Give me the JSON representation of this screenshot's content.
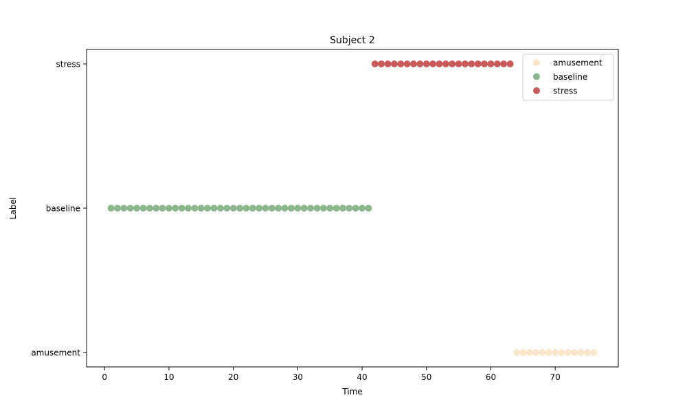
{
  "chart_data": {
    "type": "scatter",
    "title": "Subject 2",
    "xlabel": "Time",
    "ylabel": "Label",
    "xlim": [
      -2.8,
      79.8
    ],
    "x_ticks": [
      0,
      10,
      20,
      30,
      40,
      50,
      60,
      70
    ],
    "x_tick_labels": [
      "0",
      "10",
      "20",
      "30",
      "40",
      "50",
      "60",
      "70"
    ],
    "categories": [
      "amusement",
      "baseline",
      "stress"
    ],
    "grid": false,
    "legend_position": "top-right",
    "series": [
      {
        "name": "amusement",
        "color": "#fbe6cc",
        "category": "amusement",
        "x": [
          64,
          65,
          66,
          67,
          68,
          69,
          70,
          71,
          72,
          73,
          74,
          75,
          76
        ]
      },
      {
        "name": "baseline",
        "color": "#8cb78c",
        "category": "baseline",
        "x": [
          1,
          2,
          3,
          4,
          5,
          6,
          7,
          8,
          9,
          10,
          11,
          12,
          13,
          14,
          15,
          16,
          17,
          18,
          19,
          20,
          21,
          22,
          23,
          24,
          25,
          26,
          27,
          28,
          29,
          30,
          31,
          32,
          33,
          34,
          35,
          36,
          37,
          38,
          39,
          40,
          41
        ]
      },
      {
        "name": "stress",
        "color": "#c85a5a",
        "category": "stress",
        "x": [
          42,
          43,
          44,
          45,
          46,
          47,
          48,
          49,
          50,
          51,
          52,
          53,
          54,
          55,
          56,
          57,
          58,
          59,
          60,
          61,
          62,
          63
        ]
      }
    ]
  }
}
